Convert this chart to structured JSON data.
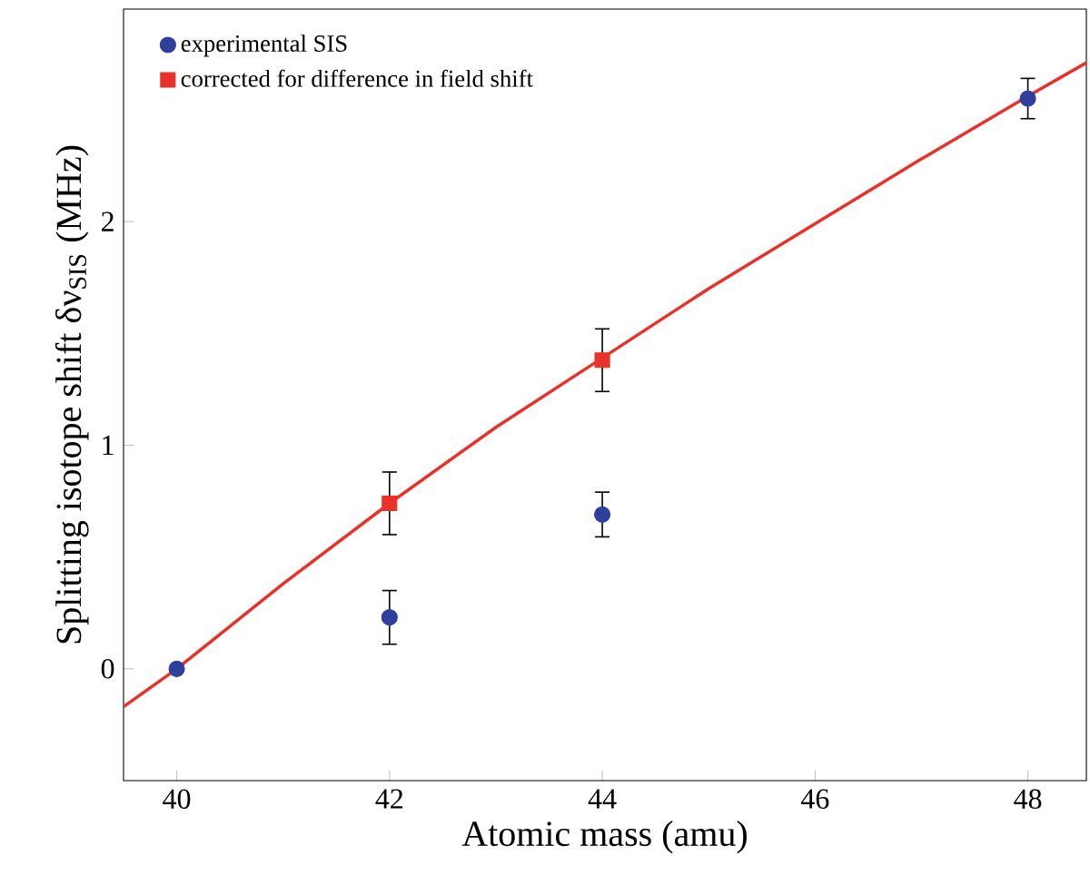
{
  "chart_data": {
    "type": "scatter",
    "xlabel": "Atomic mass (amu)",
    "ylabel": "Splitting isotope shift δν$_{SIS}$ (MHz)",
    "xlim": [
      39.5,
      48.55
    ],
    "ylim": [
      -0.5,
      2.95
    ],
    "xticks": [
      40,
      42,
      44,
      46,
      48
    ],
    "yticks": [
      0,
      1,
      2
    ],
    "legend": "top left",
    "grid": false,
    "series": [
      {
        "name": "experimental SIS",
        "marker": "circle",
        "color": "#2e3f9c",
        "x": [
          40,
          42,
          44,
          48
        ],
        "values": [
          0,
          0.23,
          0.69,
          2.55
        ],
        "errors": [
          null,
          0.12,
          0.1,
          0.09
        ]
      },
      {
        "name": "corrected for difference in field shift",
        "marker": "square",
        "color": "#e8312a",
        "x": [
          42,
          44
        ],
        "values": [
          0.74,
          1.38
        ],
        "errors": [
          0.14,
          0.14
        ]
      },
      {
        "type": "line",
        "marker": "none",
        "color": "#e8312a",
        "x": [
          39.5,
          40,
          41,
          42,
          43,
          44,
          45,
          46,
          47,
          48,
          48.55
        ],
        "values": [
          -0.17,
          0,
          0.38,
          0.74,
          1.08,
          1.39,
          1.7,
          1.99,
          2.28,
          2.56,
          2.71
        ]
      }
    ]
  }
}
